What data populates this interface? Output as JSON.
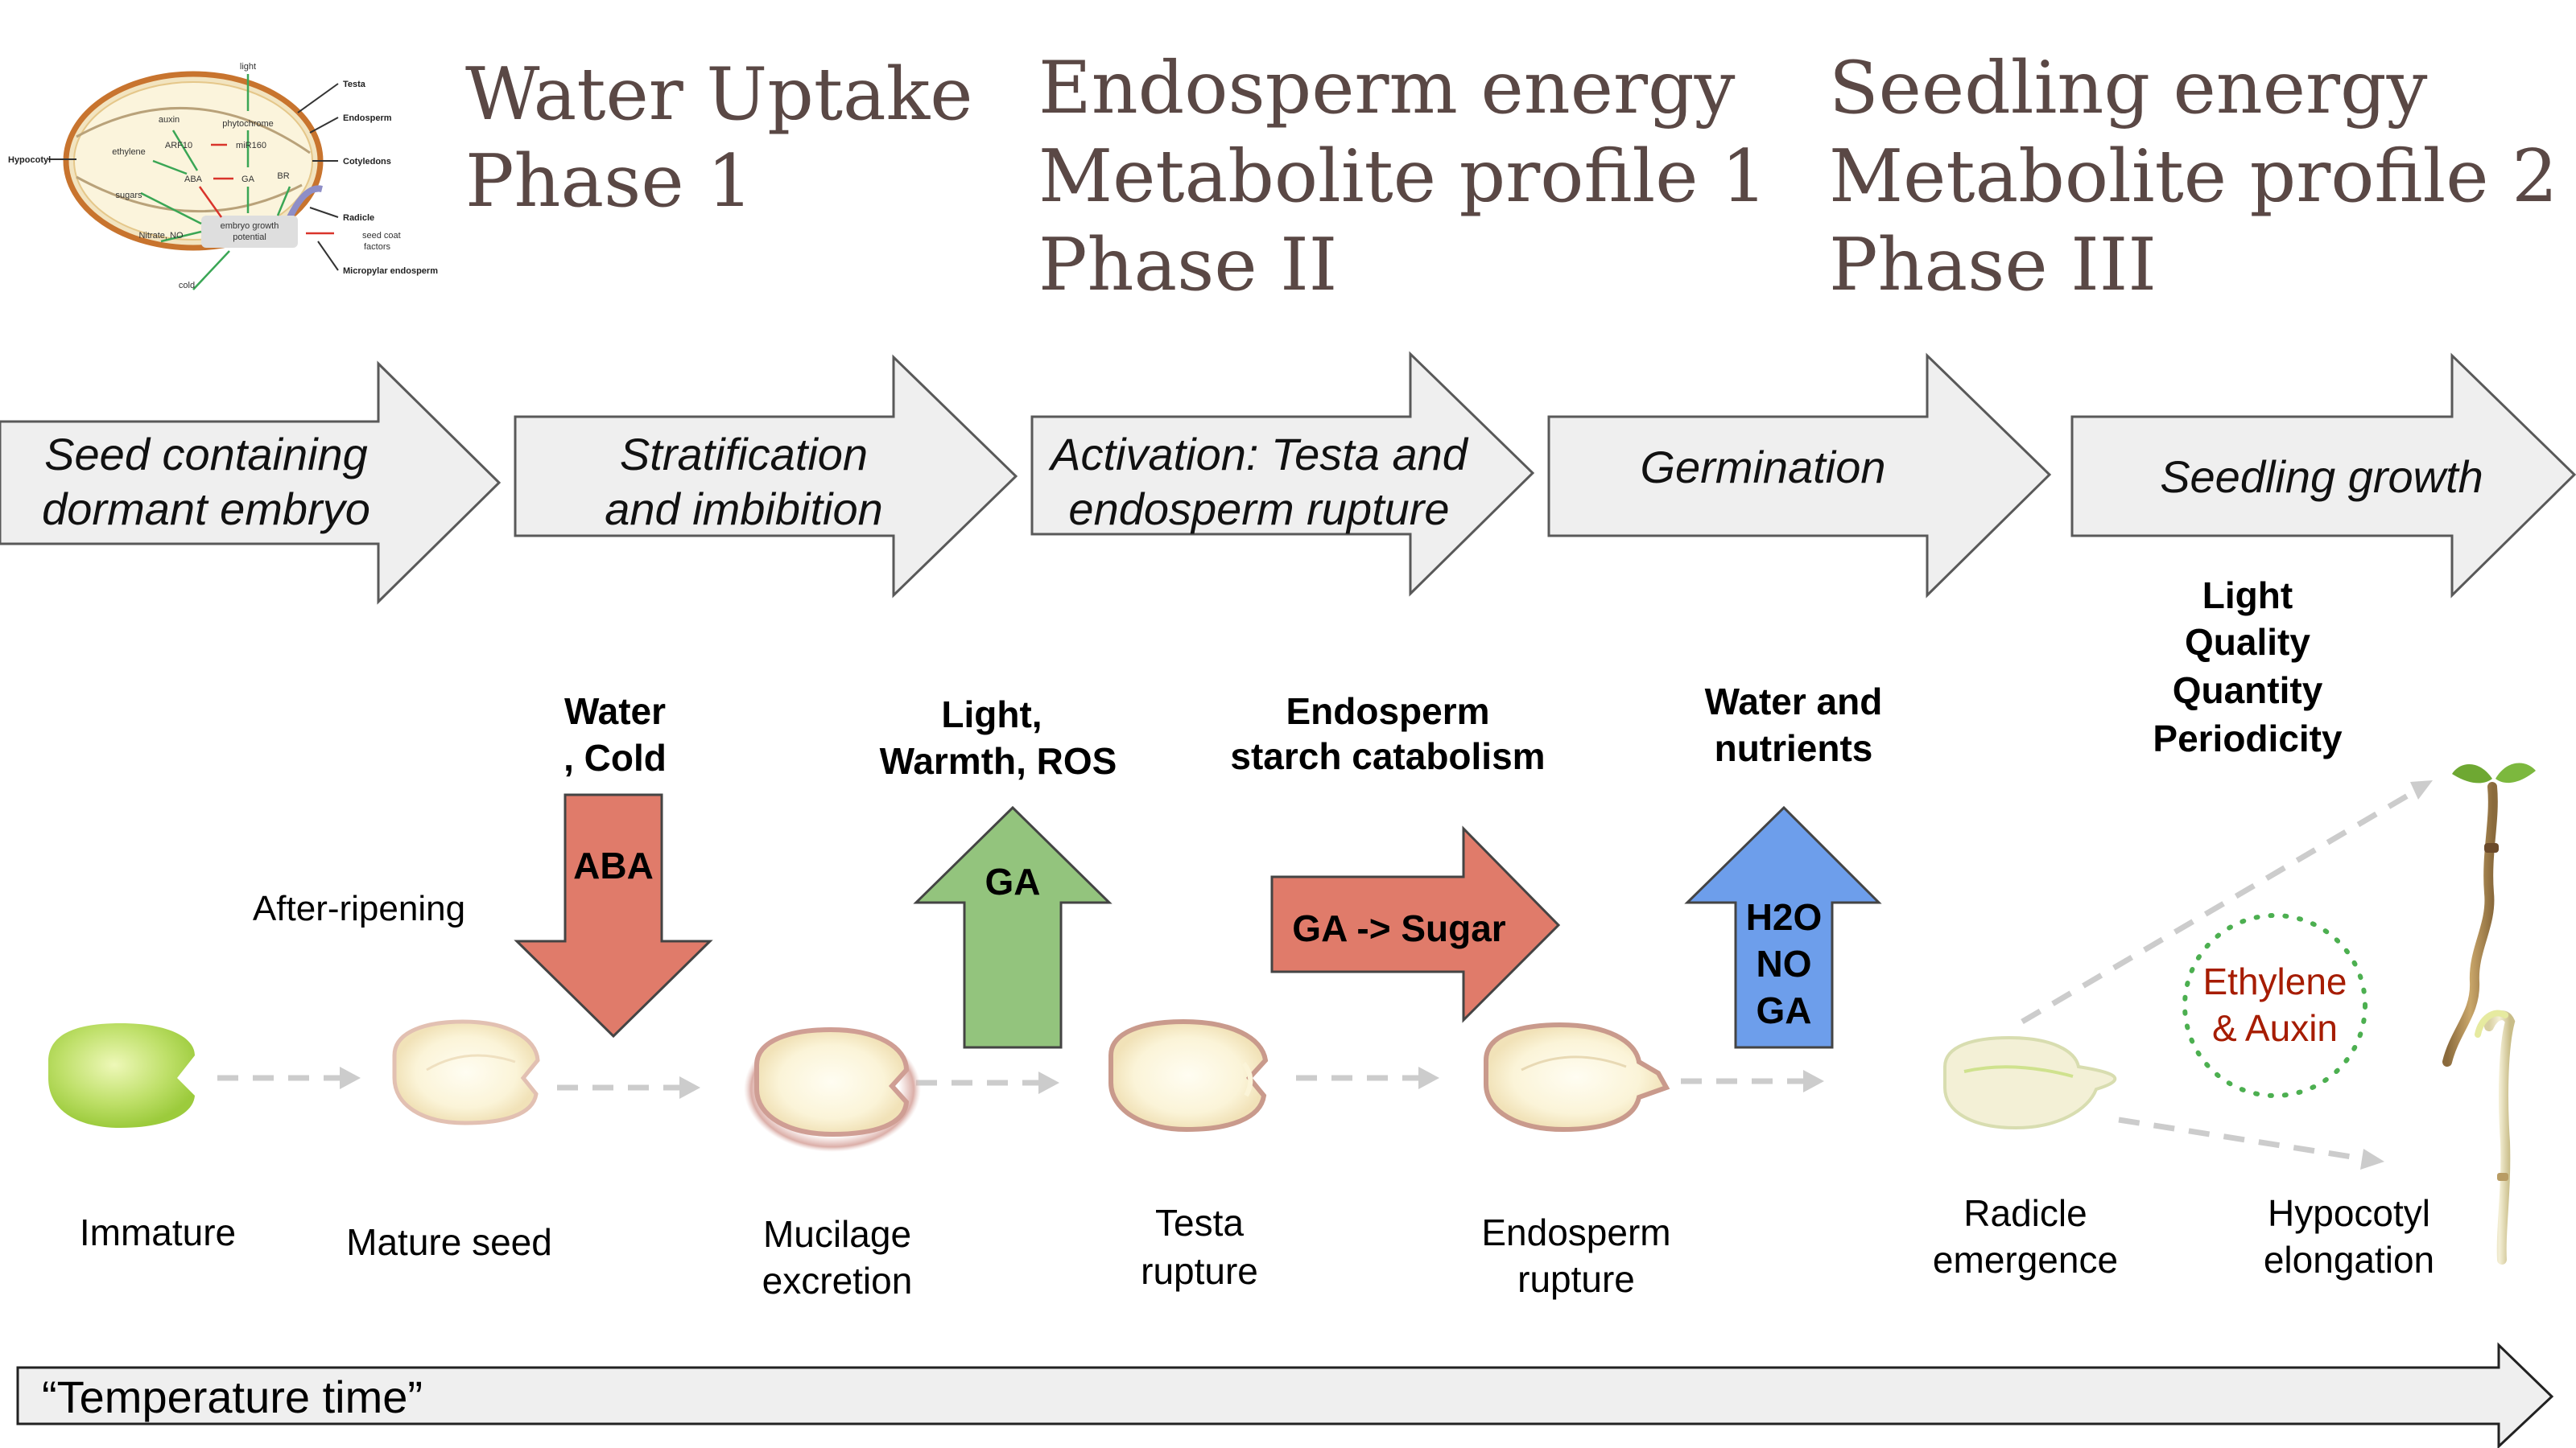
{
  "phases": [
    {
      "lines": [
        "Water Uptake",
        "Phase 1"
      ]
    },
    {
      "lines": [
        "Endosperm energy",
        "Metabolite profile 1",
        "Phase II"
      ]
    },
    {
      "lines": [
        "Seedling energy",
        "Metabolite profile 2",
        "Phase III"
      ]
    }
  ],
  "stages": [
    {
      "lines": [
        "Seed containing",
        "dormant embryo"
      ]
    },
    {
      "lines": [
        "Stratification",
        "and imbibition"
      ]
    },
    {
      "lines": [
        "Activation: Testa and",
        "endosperm rupture"
      ]
    },
    {
      "lines": [
        "Germination"
      ]
    },
    {
      "lines": [
        "Seedling growth"
      ]
    }
  ],
  "factors": {
    "water_cold": [
      "Water",
      ", Cold"
    ],
    "light_warmth": [
      "Light,",
      "Warmth, ROS"
    ],
    "starch": [
      "Endosperm",
      "starch catabolism"
    ],
    "water_nutrients": [
      "Water and",
      "nutrients"
    ],
    "light_quality": [
      "Light",
      "Quality",
      "Quantity",
      "Periodicity"
    ],
    "after_ripening": "After-ripening"
  },
  "signals": {
    "aba": "ABA",
    "ga": "GA",
    "ga_sugar": "GA -> Sugar",
    "h2o_no_ga": [
      "H2O",
      "NO",
      "GA"
    ],
    "ethylene_auxin": [
      "Ethylene",
      "& Auxin"
    ]
  },
  "seed_labels": [
    [
      "Immature"
    ],
    [
      "Mature seed"
    ],
    [
      "Mucilage",
      "excretion"
    ],
    [
      "Testa",
      "rupture"
    ],
    [
      "Endosperm",
      "rupture"
    ],
    [
      "Radicle",
      "emergence"
    ],
    [
      "Hypocotyl",
      "elongation"
    ]
  ],
  "timeline": "“Temperature time”",
  "inset": {
    "signals": [
      "light",
      "auxin",
      "phytochrome",
      "ethylene",
      "ARF10",
      "miR160",
      "ABA",
      "GA",
      "BR",
      "sugars",
      "Nitrate, NO",
      "embryo growth",
      "potential",
      "cold"
    ],
    "tissues": [
      "Testa",
      "Endosperm",
      "Cotyledons",
      "Hypocotyl",
      "Radicle",
      "seed coat",
      "factors",
      "Micropylar endosperm"
    ]
  },
  "colors": {
    "aba": "#e07b6a",
    "ga_up": "#93c47d",
    "ga_sugar": "#e07b6a",
    "h2o": "#6d9eeb",
    "process_arrow": "#efefef",
    "title_text": "#5a4845",
    "ethylene_text": "#a61c00",
    "dotted_circle": "#4caf50"
  }
}
